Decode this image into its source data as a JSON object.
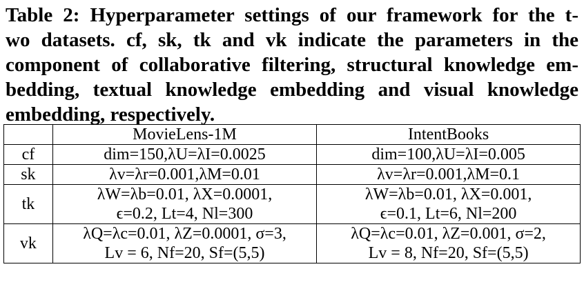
{
  "caption": {
    "lines": [
      "Table 2: Hyperparameter settings of our framework for the t-",
      "wo datasets.  cf, sk, tk and vk indicate the parameters in the",
      "component of collaborative filtering, structural knowledge em-",
      "bedding, textual knowledge embedding and visual knowledge",
      "embedding, respectively."
    ]
  },
  "table": {
    "header": [
      "",
      "MovieLens-1M",
      "IntentBooks"
    ],
    "rows": [
      {
        "label": "cf",
        "movielens": [
          "dim=150,λU=λI=0.0025"
        ],
        "intentbooks": [
          "dim=100,λU=λI=0.005"
        ]
      },
      {
        "label": "sk",
        "movielens": [
          "λv=λr=0.001,λM=0.01"
        ],
        "intentbooks": [
          "λv=λr=0.001,λM=0.1"
        ]
      },
      {
        "label": "tk",
        "movielens": [
          "λW=λb=0.01, λX=0.0001,",
          "ϵ=0.2, Lt=4, Nl=300"
        ],
        "intentbooks": [
          "λW=λb=0.01, λX=0.001,",
          "ϵ=0.1, Lt=6, Nl=200"
        ]
      },
      {
        "label": "vk",
        "movielens": [
          "λQ=λc=0.01, λZ=0.0001, σ=3,",
          "Lv = 6, Nf=20, Sf=(5,5)"
        ],
        "intentbooks": [
          "λQ=λc=0.01, λZ=0.001, σ=2,",
          "Lv = 8, Nf=20, Sf=(5,5)"
        ]
      }
    ]
  }
}
